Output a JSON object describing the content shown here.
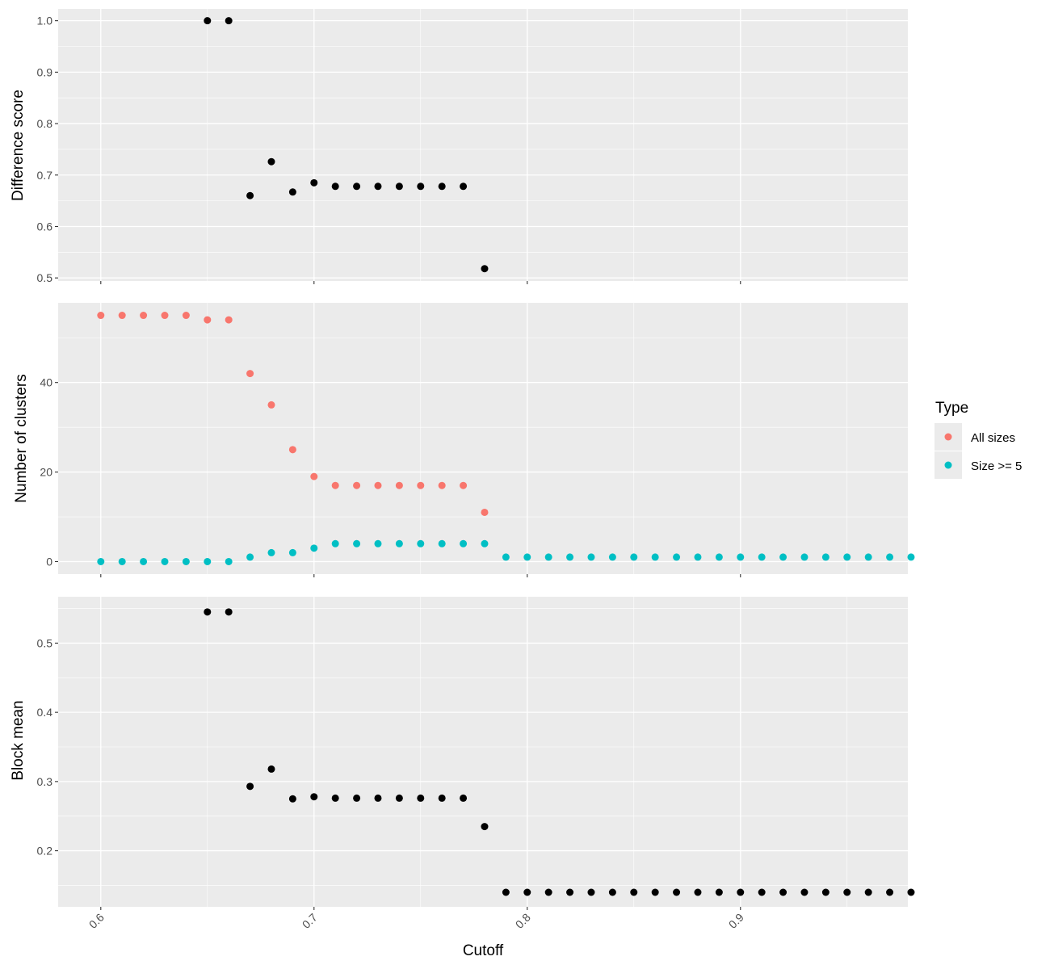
{
  "chart_data": {
    "type": "scatter",
    "x_label": "Cutoff",
    "x_ticks": [
      "0.6",
      "0.7",
      "0.8",
      "0.9"
    ],
    "x_tick_values": [
      0.6,
      0.7,
      0.8,
      0.9
    ],
    "xlim": [
      0.58,
      0.9785
    ],
    "grid": true,
    "legend_position": "right",
    "legend": {
      "title": "Type",
      "entries": [
        {
          "label": "All sizes",
          "color": "#F8766D"
        },
        {
          "label": "Size >= 5",
          "color": "#00BFC4"
        }
      ]
    },
    "panels": [
      {
        "id": "difference",
        "ylabel": "Difference score",
        "ylim": [
          0.494,
          1.023
        ],
        "y_ticks": [
          "0.5",
          "0.6",
          "0.7",
          "0.8",
          "0.9",
          "1.0"
        ],
        "y_tick_values": [
          0.5,
          0.6,
          0.7,
          0.8,
          0.9,
          1.0
        ],
        "series": [
          {
            "color": "#000000",
            "x": [
              0.65,
              0.66,
              0.67,
              0.68,
              0.69,
              0.7,
              0.71,
              0.72,
              0.73,
              0.74,
              0.75,
              0.76,
              0.77,
              0.78
            ],
            "y": [
              1.0,
              1.0,
              0.66,
              0.726,
              0.667,
              0.685,
              0.678,
              0.678,
              0.678,
              0.678,
              0.678,
              0.678,
              0.678,
              0.518
            ]
          }
        ]
      },
      {
        "id": "clusters",
        "ylabel": "Number of clusters",
        "ylim": [
          -2.8,
          57.8
        ],
        "y_ticks": [
          "0",
          "20",
          "40"
        ],
        "y_tick_values": [
          0,
          20,
          40
        ],
        "series": [
          {
            "name": "All sizes",
            "color": "#F8766D",
            "x": [
              0.6,
              0.61,
              0.62,
              0.63,
              0.64,
              0.65,
              0.66,
              0.67,
              0.68,
              0.69,
              0.7,
              0.71,
              0.72,
              0.73,
              0.74,
              0.75,
              0.76,
              0.77,
              0.78
            ],
            "y": [
              55,
              55,
              55,
              55,
              55,
              54,
              54,
              42,
              35,
              25,
              19,
              17,
              17,
              17,
              17,
              17,
              17,
              17,
              11
            ]
          },
          {
            "name": "Size >= 5",
            "color": "#00BFC4",
            "x": [
              0.6,
              0.61,
              0.62,
              0.63,
              0.64,
              0.65,
              0.66,
              0.67,
              0.68,
              0.69,
              0.7,
              0.71,
              0.72,
              0.73,
              0.74,
              0.75,
              0.76,
              0.77,
              0.78,
              0.79,
              0.8,
              0.81,
              0.82,
              0.83,
              0.84,
              0.85,
              0.86,
              0.87,
              0.88,
              0.89,
              0.9,
              0.91,
              0.92,
              0.93,
              0.94,
              0.95,
              0.96,
              0.97,
              0.98
            ],
            "y": [
              0,
              0,
              0,
              0,
              0,
              0,
              0,
              1,
              2,
              2,
              3,
              4,
              4,
              4,
              4,
              4,
              4,
              4,
              4,
              1,
              1,
              1,
              1,
              1,
              1,
              1,
              1,
              1,
              1,
              1,
              1,
              1,
              1,
              1,
              1,
              1,
              1,
              1,
              1
            ]
          }
        ]
      },
      {
        "id": "block",
        "ylabel": "Block mean",
        "ylim": [
          0.119,
          0.567
        ],
        "y_ticks": [
          "0.2",
          "0.3",
          "0.4",
          "0.5"
        ],
        "y_tick_values": [
          0.2,
          0.3,
          0.4,
          0.5
        ],
        "series": [
          {
            "color": "#000000",
            "x": [
              0.65,
              0.66,
              0.67,
              0.68,
              0.69,
              0.7,
              0.71,
              0.72,
              0.73,
              0.74,
              0.75,
              0.76,
              0.77,
              0.78,
              0.79,
              0.8,
              0.81,
              0.82,
              0.83,
              0.84,
              0.85,
              0.86,
              0.87,
              0.88,
              0.89,
              0.9,
              0.91,
              0.92,
              0.93,
              0.94,
              0.95,
              0.96,
              0.97,
              0.98
            ],
            "y": [
              0.545,
              0.545,
              0.293,
              0.318,
              0.275,
              0.278,
              0.276,
              0.276,
              0.276,
              0.276,
              0.276,
              0.276,
              0.276,
              0.235,
              0.14,
              0.14,
              0.14,
              0.14,
              0.14,
              0.14,
              0.14,
              0.14,
              0.14,
              0.14,
              0.14,
              0.14,
              0.14,
              0.14,
              0.14,
              0.14,
              0.14,
              0.14,
              0.14,
              0.14
            ]
          }
        ]
      }
    ]
  }
}
